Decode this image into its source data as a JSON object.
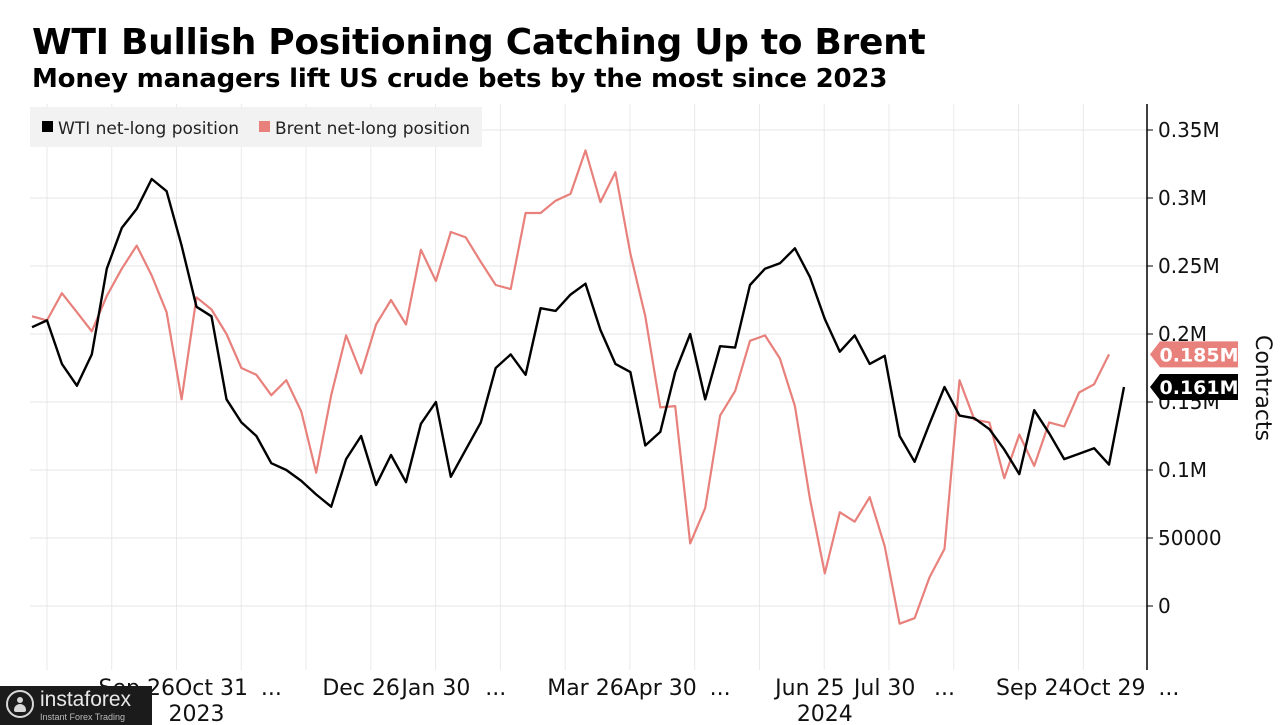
{
  "chart_data": {
    "type": "line",
    "title": "WTI Bullish Positioning Catching Up to Brent",
    "subtitle": "Money managers lift US crude bets by the most since 2023",
    "ylabel": "Contracts",
    "ylim": [
      -50000,
      360000
    ],
    "y_ticks": [
      {
        "value": 350000,
        "label": "0.35M"
      },
      {
        "value": 300000,
        "label": "0.3M"
      },
      {
        "value": 250000,
        "label": "0.25M"
      },
      {
        "value": 200000,
        "label": "0.2M"
      },
      {
        "value": 150000,
        "label": "0.15M"
      },
      {
        "value": 100000,
        "label": "0.1M"
      },
      {
        "value": 50000,
        "label": "50000"
      },
      {
        "value": 0,
        "label": "0"
      }
    ],
    "x_tick_labels": [
      {
        "index": 1,
        "label": "..."
      },
      {
        "index": 7,
        "label": "Sep 26"
      },
      {
        "index": 12,
        "label": "Oct 31"
      },
      {
        "index": 16,
        "label": "..."
      },
      {
        "index": 22,
        "label": "Dec 26"
      },
      {
        "index": 27,
        "label": "Jan 30"
      },
      {
        "index": 31,
        "label": "..."
      },
      {
        "index": 37,
        "label": "Mar 26"
      },
      {
        "index": 42,
        "label": "Apr 30"
      },
      {
        "index": 46,
        "label": "..."
      },
      {
        "index": 52,
        "label": "Jun 25"
      },
      {
        "index": 57,
        "label": "Jul 30"
      },
      {
        "index": 61,
        "label": "..."
      },
      {
        "index": 67,
        "label": "Sep 24"
      },
      {
        "index": 72,
        "label": "Oct 29"
      },
      {
        "index": 76,
        "label": "..."
      }
    ],
    "year_labels": [
      {
        "index": 11,
        "label": "2023"
      },
      {
        "index": 53,
        "label": "2024"
      }
    ],
    "legend_position": "top-left",
    "series": [
      {
        "name": "WTI net-long position",
        "color": "#000000",
        "last_label": "0.161M",
        "values": [
          205000,
          210000,
          178000,
          162000,
          185000,
          248000,
          278000,
          292000,
          314000,
          305000,
          265000,
          220000,
          213000,
          152000,
          135000,
          125000,
          105000,
          100000,
          92000,
          82000,
          73000,
          108000,
          125000,
          89000,
          111000,
          91000,
          134000,
          150000,
          95000,
          115000,
          135000,
          175000,
          185000,
          170000,
          219000,
          217000,
          229000,
          237000,
          203000,
          178000,
          172000,
          118000,
          128000,
          172000,
          200000,
          152000,
          191000,
          190000,
          236000,
          248000,
          252000,
          263000,
          242000,
          211000,
          187000,
          199000,
          178000,
          184000,
          125000,
          106000,
          134000,
          161000,
          140000,
          138000,
          130000,
          115000,
          97000,
          144000,
          127000,
          108000,
          112000,
          116000,
          104000,
          161000
        ]
      },
      {
        "name": "Brent net-long position",
        "color": "#e8807c",
        "last_label": "0.185M",
        "values": [
          213000,
          210000,
          230000,
          216000,
          202000,
          228000,
          248000,
          265000,
          243000,
          216000,
          152000,
          227000,
          218000,
          200000,
          175000,
          170000,
          155000,
          166000,
          143000,
          98000,
          155000,
          199000,
          171000,
          207000,
          225000,
          207000,
          262000,
          239000,
          275000,
          271000,
          253000,
          236000,
          233000,
          289000,
          289000,
          298000,
          303000,
          335000,
          297000,
          319000,
          259000,
          213000,
          146000,
          147000,
          46000,
          72000,
          140000,
          158000,
          195000,
          199000,
          182000,
          147000,
          79000,
          24000,
          69000,
          62000,
          80000,
          44000,
          -13000,
          -9000,
          21000,
          42000,
          166000,
          137000,
          135000,
          94000,
          126000,
          103000,
          135000,
          132000,
          157000,
          163000,
          185000
        ]
      }
    ]
  },
  "watermark": {
    "name": "instaforex",
    "tagline": "Instant Forex Trading"
  }
}
